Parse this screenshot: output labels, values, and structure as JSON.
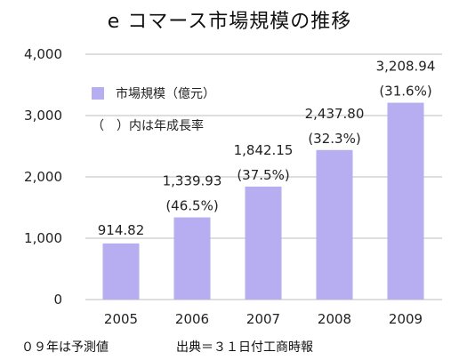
{
  "title": "e コマース市場規模の推移",
  "legend": {
    "series_label": "市場規模（億元）",
    "note": "（　）内は年成長率"
  },
  "footer": {
    "note_left": "０９年は予測値",
    "source": "出典＝３１日付工商時報"
  },
  "colors": {
    "bar": "#b7aef2",
    "grid": "#bdbdbd"
  },
  "chart_data": {
    "type": "bar",
    "title": "e コマース市場規模の推移",
    "xlabel": "",
    "ylabel": "",
    "categories": [
      "2005",
      "2006",
      "2007",
      "2008",
      "2009"
    ],
    "series": [
      {
        "name": "市場規模（億元）",
        "values": [
          914.82,
          1339.93,
          1842.15,
          2437.8,
          3208.94
        ]
      }
    ],
    "value_labels": [
      "914.82",
      "1,339.93",
      "1,842.15",
      "2,437.80",
      "3,208.94"
    ],
    "growth_labels": [
      "",
      "(46.5%)",
      "(37.5%)",
      "(32.3%)",
      "(31.6%)"
    ],
    "yticks": [
      0,
      1000,
      2000,
      3000,
      4000
    ],
    "ytick_labels": [
      "0",
      "1,000",
      "2,000",
      "3,000",
      "4,000"
    ],
    "ylim": [
      0,
      4000
    ],
    "grid": true,
    "legend_position": "top-left"
  }
}
